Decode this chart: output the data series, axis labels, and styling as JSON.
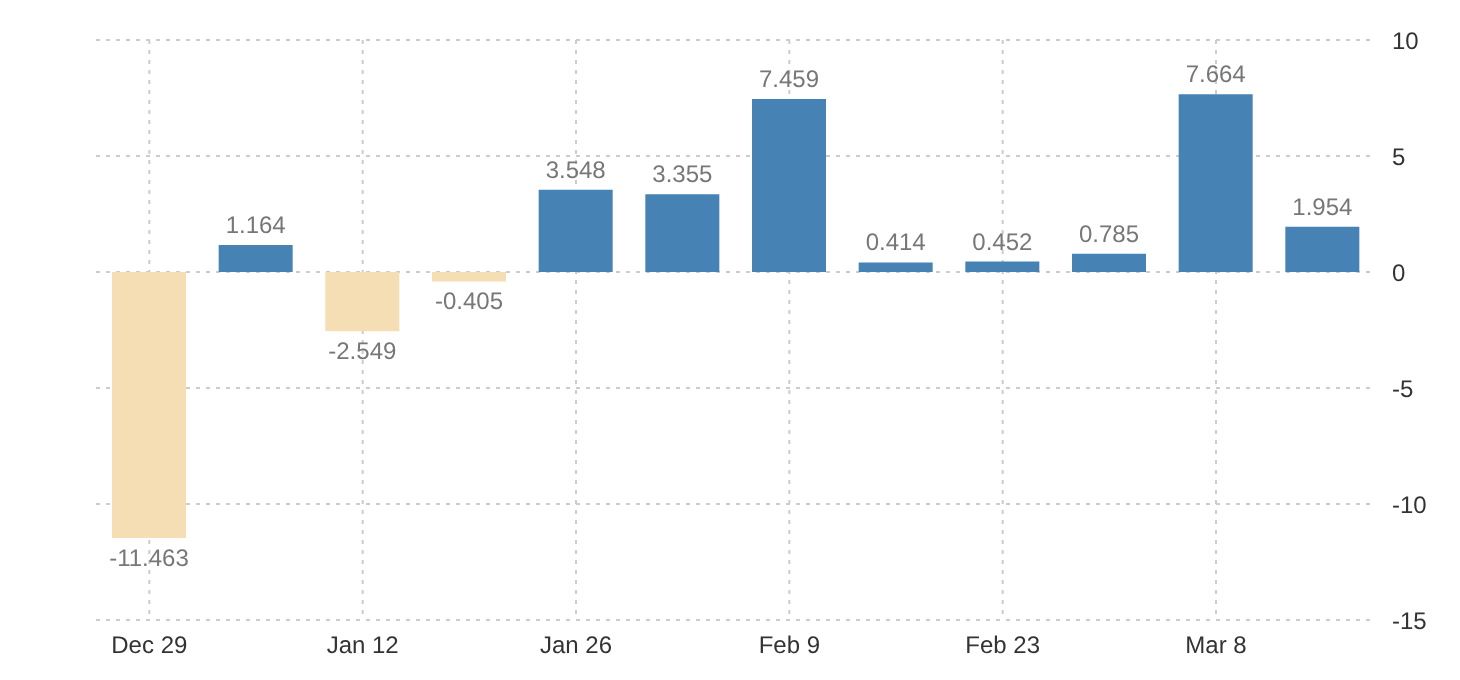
{
  "chart_data": {
    "type": "bar",
    "categories": [
      "Dec 29",
      null,
      "Jan 12",
      null,
      "Jan 26",
      null,
      "Feb 9",
      null,
      "Feb 23",
      null,
      "Mar 8",
      null
    ],
    "values": [
      -11.463,
      1.164,
      -2.549,
      -0.405,
      3.548,
      3.355,
      7.459,
      0.414,
      0.452,
      0.785,
      7.664,
      1.954
    ],
    "colors": [
      "#f5deb3",
      "#4682b4",
      "#f5deb3",
      "#f5deb3",
      "#4682b4",
      "#4682b4",
      "#4682b4",
      "#4682b4",
      "#4682b4",
      "#4682b4",
      "#4682b4",
      "#4682b4"
    ],
    "ylim": [
      -15,
      10
    ],
    "yticks": [
      -15,
      -10,
      -5,
      0,
      5,
      10
    ],
    "grid": true,
    "data_labels": true
  }
}
